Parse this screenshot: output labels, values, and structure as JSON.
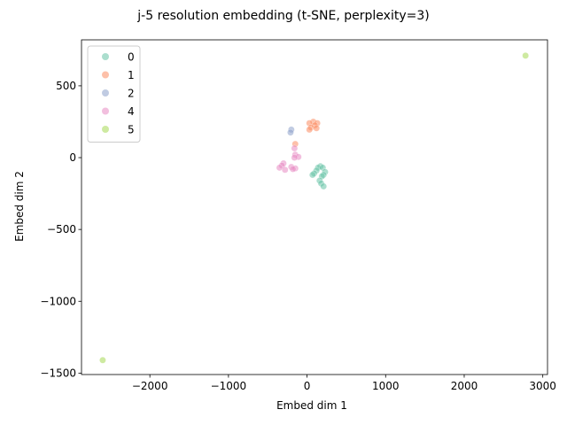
{
  "chart_data": {
    "type": "scatter",
    "title": "j-5 resolution embedding (t-SNE, perplexity=3)",
    "xlabel": "Embed dim 1",
    "ylabel": "Embed dim 2",
    "xlim": [
      -2870,
      3060
    ],
    "ylim": [
      -1510,
      820
    ],
    "xticks": [
      -2000,
      -1000,
      0,
      1000,
      2000,
      3000
    ],
    "xtick_labels": [
      "−2000",
      "−1000",
      "0",
      "1000",
      "2000",
      "3000"
    ],
    "yticks": [
      500,
      0,
      -500,
      -1000,
      -1500
    ],
    "ytick_labels": [
      "500",
      "0",
      "−500",
      "−1000",
      "−1500"
    ],
    "grid": false,
    "legend": "top-left",
    "series": [
      {
        "name": "0",
        "color": "#66c2a5",
        "points": [
          [
            170,
            -60
          ],
          [
            140,
            -70
          ],
          [
            200,
            -70
          ],
          [
            120,
            -90
          ],
          [
            230,
            -100
          ],
          [
            90,
            -110
          ],
          [
            210,
            -120
          ],
          [
            70,
            -120
          ],
          [
            190,
            -130
          ],
          [
            160,
            -160
          ],
          [
            180,
            -180
          ],
          [
            210,
            -200
          ]
        ]
      },
      {
        "name": "1",
        "color": "#fc8d62",
        "points": [
          [
            80,
            250
          ],
          [
            130,
            240
          ],
          [
            30,
            240
          ],
          [
            100,
            225
          ],
          [
            50,
            210
          ],
          [
            120,
            205
          ],
          [
            30,
            195
          ],
          [
            -150,
            95
          ]
        ]
      },
      {
        "name": "2",
        "color": "#8da0cb",
        "points": [
          [
            -200,
            195
          ],
          [
            -210,
            175
          ]
        ]
      },
      {
        "name": "4",
        "color": "#e78ac3",
        "points": [
          [
            -160,
            65
          ],
          [
            -150,
            20
          ],
          [
            -110,
            5
          ],
          [
            -160,
            0
          ],
          [
            -300,
            -40
          ],
          [
            -320,
            -55
          ],
          [
            -200,
            -65
          ],
          [
            -350,
            -70
          ],
          [
            -150,
            -75
          ],
          [
            -180,
            -80
          ],
          [
            -280,
            -85
          ]
        ]
      },
      {
        "name": "5",
        "color": "#a6d854",
        "points": [
          [
            2780,
            710
          ],
          [
            -2600,
            -1410
          ]
        ]
      }
    ]
  }
}
